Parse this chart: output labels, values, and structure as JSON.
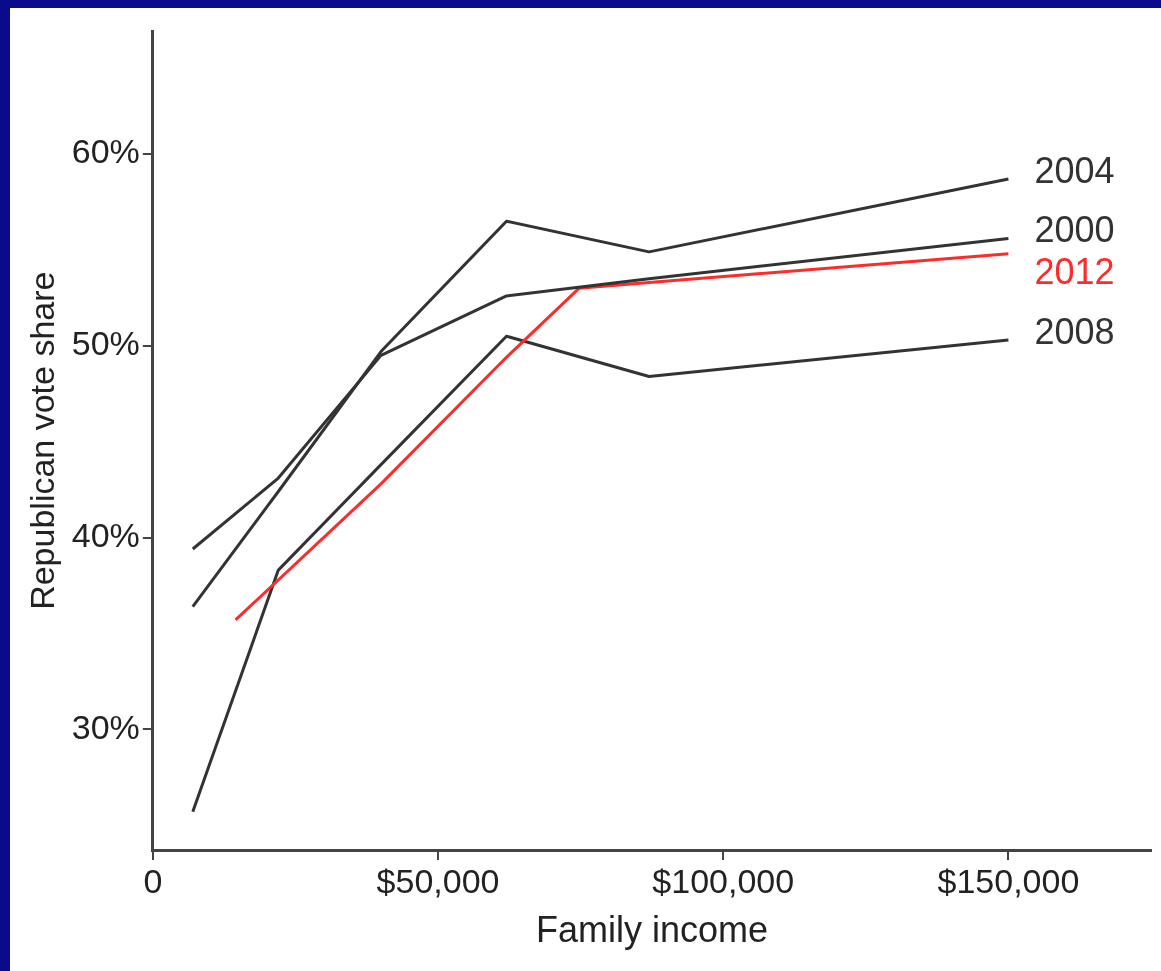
{
  "chart_data": {
    "type": "line",
    "xlabel": "Family income",
    "ylabel": "Republican vote share",
    "xlim": [
      0,
      175000
    ],
    "ylim": [
      23.7,
      66.4
    ],
    "xticks": [
      {
        "value": 0,
        "label": "0"
      },
      {
        "value": 50000,
        "label": "$50,000"
      },
      {
        "value": 100000,
        "label": "$100,000"
      },
      {
        "value": 150000,
        "label": "$150,000"
      }
    ],
    "yticks": [
      {
        "value": 30,
        "label": "30%"
      },
      {
        "value": 40,
        "label": "40%"
      },
      {
        "value": 50,
        "label": "50%"
      },
      {
        "value": 60,
        "label": "60%"
      }
    ],
    "grid": false,
    "legend": false,
    "marker": "none",
    "line_style": "solid",
    "series": [
      {
        "name": "2004",
        "color": "#333333",
        "x": [
          7000,
          22000,
          40000,
          62000,
          87000,
          150000
        ],
        "values": [
          36.4,
          42.4,
          49.7,
          56.5,
          54.9,
          58.7
        ]
      },
      {
        "name": "2000",
        "color": "#333333",
        "x": [
          7000,
          22000,
          40000,
          62000,
          87000,
          150000
        ],
        "values": [
          39.4,
          43.1,
          49.5,
          52.6,
          53.5,
          55.6
        ]
      },
      {
        "name": "2012",
        "color": "#ff2a2a",
        "x": [
          14500,
          40000,
          62000,
          74700,
          87000,
          150000
        ],
        "values": [
          35.7,
          42.8,
          49.4,
          53.0,
          53.3,
          54.8
        ]
      },
      {
        "name": "2008",
        "color": "#333333",
        "x": [
          7000,
          22000,
          40000,
          62000,
          87000,
          150000
        ],
        "values": [
          25.7,
          38.3,
          43.8,
          50.5,
          48.4,
          50.3
        ]
      }
    ]
  }
}
